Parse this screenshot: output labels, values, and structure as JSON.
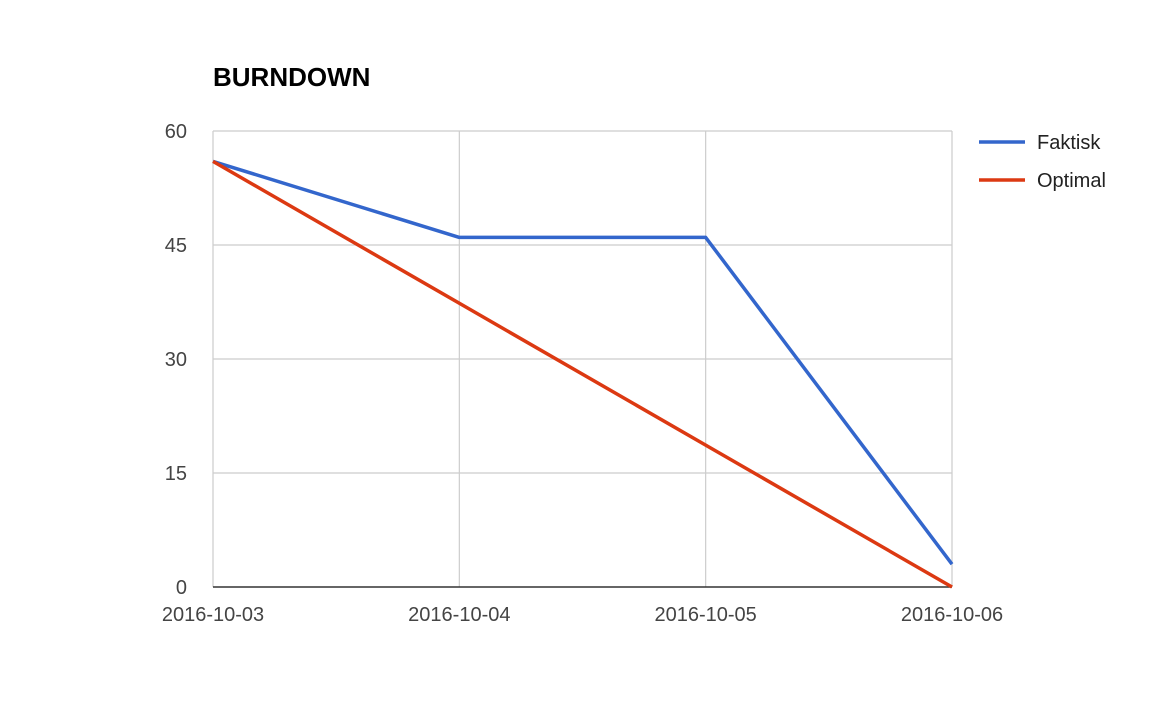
{
  "chart_data": {
    "type": "line",
    "title": "BURNDOWN",
    "xlabel": "",
    "ylabel": "",
    "categories": [
      "2016-10-03",
      "2016-10-04",
      "2016-10-05",
      "2016-10-06"
    ],
    "x_tick_labels": [
      "2016-10-03",
      "2016-10-04",
      "2016-10-05",
      "2016-10-06"
    ],
    "ylim": [
      0,
      60
    ],
    "y_ticks": [
      0,
      15,
      30,
      45,
      60
    ],
    "y_tick_labels": [
      "0",
      "15",
      "30",
      "45",
      "60"
    ],
    "grid": true,
    "legend_position": "right",
    "series": [
      {
        "name": "Faktisk",
        "color": "#3366cc",
        "values": [
          56,
          46,
          46,
          3
        ]
      },
      {
        "name": "Optimal",
        "color": "#dc3912",
        "values": [
          56,
          37.33,
          18.67,
          0
        ]
      }
    ]
  }
}
